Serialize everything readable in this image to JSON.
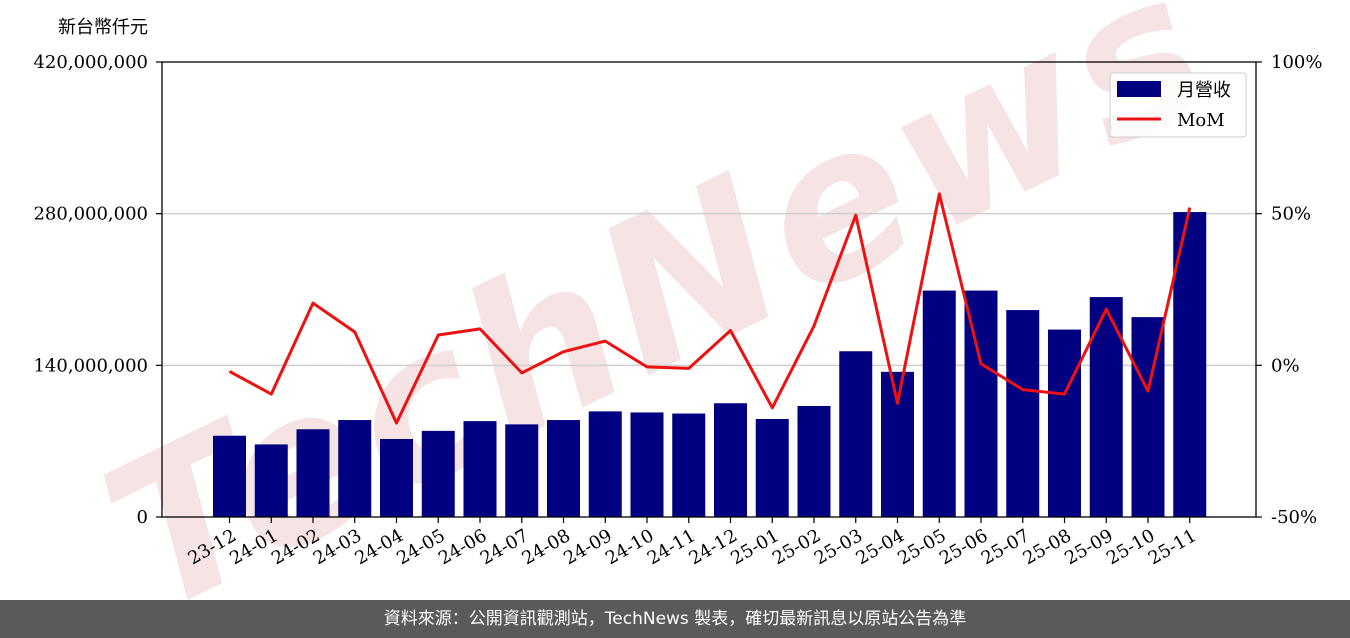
{
  "chart_data": {
    "type": "bar",
    "y_unit_label": "新台幣仟元",
    "categories": [
      "23-12",
      "24-01",
      "24-02",
      "24-03",
      "24-04",
      "24-05",
      "24-06",
      "24-07",
      "24-08",
      "24-09",
      "24-10",
      "24-11",
      "24-12",
      "25-01",
      "25-02",
      "25-03",
      "25-04",
      "25-05",
      "25-06",
      "25-07",
      "25-08",
      "25-09",
      "25-10",
      "25-11"
    ],
    "series": [
      {
        "name": "月營收",
        "type": "bar",
        "axis": "left",
        "color": "#000080",
        "values": [
          75000000,
          67000000,
          81000000,
          89500000,
          72000000,
          79500000,
          88500000,
          85500000,
          89500000,
          97500000,
          96500000,
          95500000,
          105000000,
          90500000,
          102500000,
          153000000,
          134000000,
          209000000,
          209000000,
          191000000,
          173000000,
          203000000,
          184500000,
          281500000
        ]
      },
      {
        "name": "MoM",
        "type": "line",
        "axis": "right",
        "color": "#ee1111",
        "values": [
          -2.0,
          -9.5,
          20.5,
          11.0,
          -19.0,
          10.0,
          12.0,
          -2.5,
          4.5,
          8.0,
          -0.5,
          -1.0,
          11.5,
          -14.0,
          13.0,
          49.5,
          -12.5,
          56.5,
          0.5,
          -8.0,
          -9.5,
          18.5,
          -8.5,
          52.0
        ]
      }
    ],
    "ylim": [
      0,
      420000000
    ],
    "y_ticks": [
      0,
      140000000,
      280000000,
      420000000
    ],
    "y_tick_labels": [
      "0",
      "140,000,000",
      "280,000,000",
      "420,000,000"
    ],
    "y2lim": [
      -50,
      100
    ],
    "y2_ticks": [
      -50,
      0,
      50,
      100
    ],
    "y2_tick_labels": [
      "-50%",
      "0%",
      "50%",
      "100%"
    ],
    "grid": "horizontal",
    "legend_position": "top-right"
  },
  "watermark": "TechNews",
  "footer_text": "資料來源：公開資訊觀測站，TechNews 製表，確切最新訊息以原站公告為準"
}
